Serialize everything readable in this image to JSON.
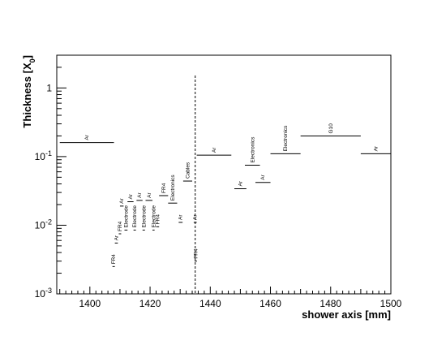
{
  "chart_data": {
    "type": "scatter",
    "title": "",
    "xlabel": "shower axis [mm]",
    "ylabel": "Thickness [X_0]",
    "ylabel_main": "Thickness [X",
    "ylabel_sub": "0",
    "ylabel_close": "]",
    "xlim": [
      1389,
      1500
    ],
    "ylim": [
      0.001,
      3
    ],
    "y_scale": "log",
    "grid": false,
    "x_ticks": [
      1400,
      1420,
      1440,
      1460,
      1480,
      1500
    ],
    "x_tick_labels": [
      "1400",
      "1420",
      "1440",
      "1460",
      "1480",
      "1500"
    ],
    "y_ticks": [
      0.001,
      0.01,
      0.1,
      1
    ],
    "y_tick_labels": [
      {
        "base": "10",
        "exp": "-3"
      },
      {
        "base": "10",
        "exp": "-2"
      },
      {
        "base": "10",
        "exp": "-1"
      },
      {
        "base": "1",
        "exp": ""
      }
    ],
    "marker_x": 1435,
    "segments": [
      {
        "label": "Ar",
        "x0": 1390,
        "x1": 1408,
        "y": 0.16
      },
      {
        "label": "FR4",
        "x0": 1407.5,
        "x1": 1408.3,
        "y": 0.0025
      },
      {
        "label": "Ar",
        "x0": 1408.3,
        "x1": 1409.3,
        "y": 0.0055
      },
      {
        "label": "FR4",
        "x0": 1409.6,
        "x1": 1410.4,
        "y": 0.0075
      },
      {
        "label": "Ar",
        "x0": 1410,
        "x1": 1411.2,
        "y": 0.019
      },
      {
        "label": "Electrode",
        "x0": 1411.5,
        "x1": 1412.5,
        "y": 0.0085
      },
      {
        "label": "Ar",
        "x0": 1412.5,
        "x1": 1414.5,
        "y": 0.022
      },
      {
        "label": "Electrode",
        "x0": 1414.5,
        "x1": 1415.3,
        "y": 0.0085
      },
      {
        "label": "Ar",
        "x0": 1415.5,
        "x1": 1417.5,
        "y": 0.023
      },
      {
        "label": "Electrode",
        "x0": 1417.5,
        "x1": 1418.3,
        "y": 0.0085
      },
      {
        "label": "Ar",
        "x0": 1418.5,
        "x1": 1420.8,
        "y": 0.023
      },
      {
        "label": "Electrode",
        "x0": 1420.8,
        "x1": 1421.5,
        "y": 0.0085
      },
      {
        "label": "FR4",
        "x0": 1422,
        "x1": 1423,
        "y": 0.0095
      },
      {
        "label": "FR4",
        "x0": 1423,
        "x1": 1426,
        "y": 0.027
      },
      {
        "label": "Electronics",
        "x0": 1426,
        "x1": 1429,
        "y": 0.021
      },
      {
        "label": "Ar",
        "x0": 1429.5,
        "x1": 1430.8,
        "y": 0.011
      },
      {
        "label": "Cables",
        "x0": 1431,
        "x1": 1434,
        "y": 0.044
      },
      {
        "label": "Ar",
        "x0": 1434.5,
        "x1": 1435.5,
        "y": 0.011
      },
      {
        "label": "FR4",
        "x0": 1434.8,
        "x1": 1435.6,
        "y": 0.003
      },
      {
        "label": "Ar",
        "x0": 1435.5,
        "x1": 1447,
        "y": 0.105
      },
      {
        "label": "Ar",
        "x0": 1448,
        "x1": 1452,
        "y": 0.034
      },
      {
        "label": "Electronics",
        "x0": 1451.5,
        "x1": 1456.5,
        "y": 0.075
      },
      {
        "label": "Ar",
        "x0": 1455,
        "x1": 1460,
        "y": 0.042
      },
      {
        "label": "Electronics",
        "x0": 1460,
        "x1": 1470,
        "y": 0.11
      },
      {
        "label": "G10",
        "x0": 1470,
        "x1": 1490,
        "y": 0.2
      },
      {
        "label": "Ar",
        "x0": 1490,
        "x1": 1500,
        "y": 0.11
      }
    ]
  }
}
